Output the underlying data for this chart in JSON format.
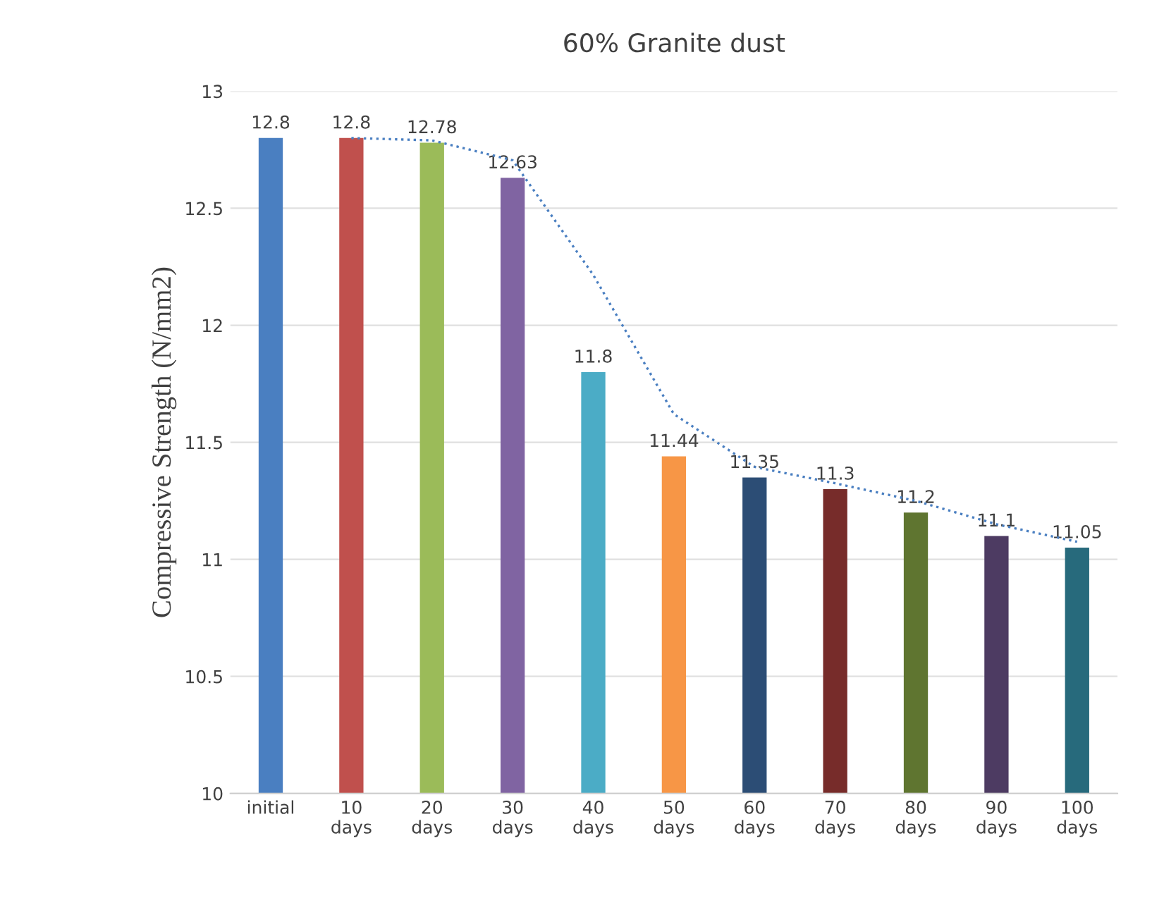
{
  "chart_data": {
    "type": "bar",
    "title": "60% Granite dust",
    "ylabel": "Compressive Strength (N/mm2)",
    "categories": [
      "initial",
      "10\ndays",
      "20\ndays",
      "30\ndays",
      "40\ndays",
      "50\ndays",
      "60\ndays",
      "70\ndays",
      "80\ndays",
      "90\ndays",
      "100\ndays"
    ],
    "series": [
      {
        "values": [
          12.8,
          12.8,
          12.78,
          12.63,
          11.8,
          11.44,
          11.35,
          11.3,
          11.2,
          11.1,
          11.05
        ],
        "colors": [
          "#4a7fc1",
          "#c0504d",
          "#9bbb59",
          "#8064a2",
          "#4bacc6",
          "#f79646",
          "#2c4d75",
          "#772c2a",
          "#5f7530",
          "#4d3b62",
          "#276a7c"
        ],
        "value_labels": [
          "12.8",
          "12.8",
          "12.78",
          "12.63",
          "11.8",
          "11.44",
          "11.35",
          "11.3",
          "11.2",
          "11.1",
          "11.05"
        ]
      },
      {
        "type": "line",
        "color": "#4a7fc1",
        "line_style": "dotted",
        "values": [
          null,
          12.8,
          12.79,
          12.705,
          12.215,
          11.62,
          11.395,
          11.325,
          11.25,
          11.15,
          11.075
        ]
      }
    ],
    "ylim": [
      10,
      13
    ],
    "yticks": [
      10,
      10.5,
      11,
      11.5,
      12,
      12.5,
      13
    ],
    "grid": "y",
    "legend": false
  }
}
